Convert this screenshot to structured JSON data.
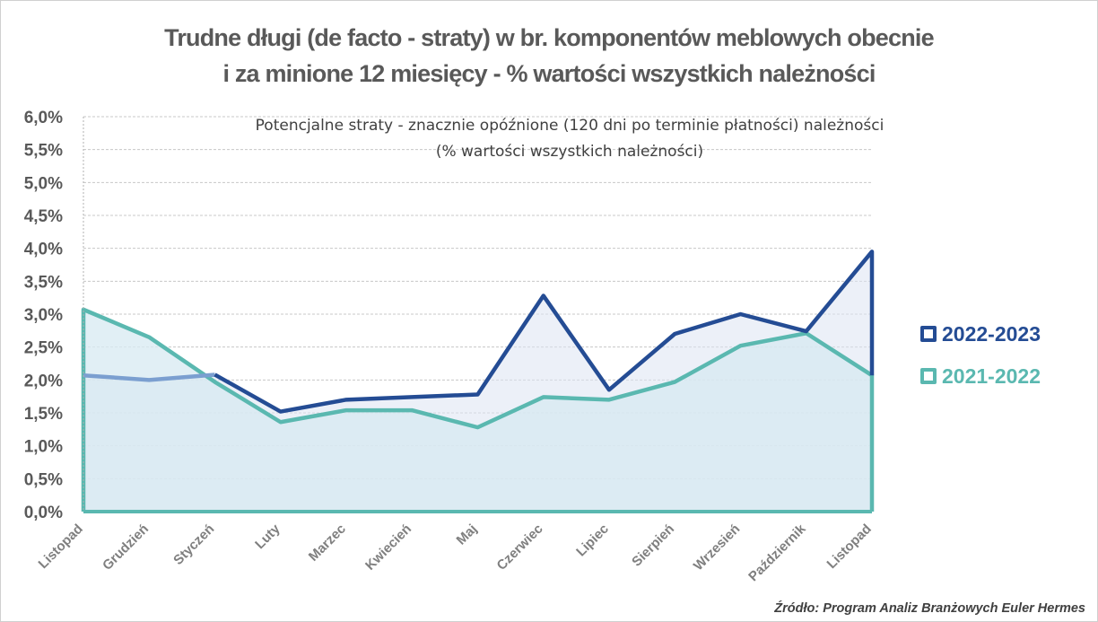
{
  "chart_data": {
    "type": "line",
    "title": "Trudne długi (de facto - straty) w br. komponentów meblowych obecnie i za minione 12 miesięcy - % wartości wszystkich należności",
    "title_lines": [
      "Trudne długi (de facto - straty) w br. komponentów meblowych obecnie",
      "i za minione 12 miesięcy - % wartości wszystkich należności"
    ],
    "subtitle_lines": [
      "Potencjalne straty - znacznie opóźnione (120 dni po terminie płatności) należności",
      "(% wartości wszystkich należności)"
    ],
    "categories": [
      "Listopad",
      "Grudzień",
      "Styczeń",
      "Luty",
      "Marzec",
      "Kwiecień",
      "Maj",
      "Czerwiec",
      "Lipiec",
      "Sierpień",
      "Wrzesień",
      "Październik",
      "Listopad"
    ],
    "series": [
      {
        "name": "2022-2023",
        "color": "#244c94",
        "fill": "#dde3f3",
        "values": [
          2.07,
          2.0,
          2.08,
          1.52,
          1.7,
          1.74,
          1.78,
          3.28,
          1.85,
          2.7,
          3.0,
          2.74,
          3.95
        ]
      },
      {
        "name": "2021-2022",
        "color": "#5ab8b0",
        "fill": "#d7e9f1",
        "values": [
          3.07,
          2.65,
          1.97,
          1.36,
          1.54,
          1.54,
          1.28,
          1.74,
          1.7,
          1.97,
          2.52,
          2.71,
          2.07
        ]
      }
    ],
    "early_segment_color": "#7b9fd0",
    "yticks": [
      "0,0%",
      "0,5%",
      "1,0%",
      "1,5%",
      "2,0%",
      "2,5%",
      "3,0%",
      "3,5%",
      "4,0%",
      "4,5%",
      "5,0%",
      "5,5%",
      "6,0%"
    ],
    "ylim": [
      0,
      6
    ],
    "ytick_step": 0.5,
    "grid": true,
    "legend_position": "right",
    "source": "Źródło: Program Analiz Branżowych Euler Hermes"
  }
}
